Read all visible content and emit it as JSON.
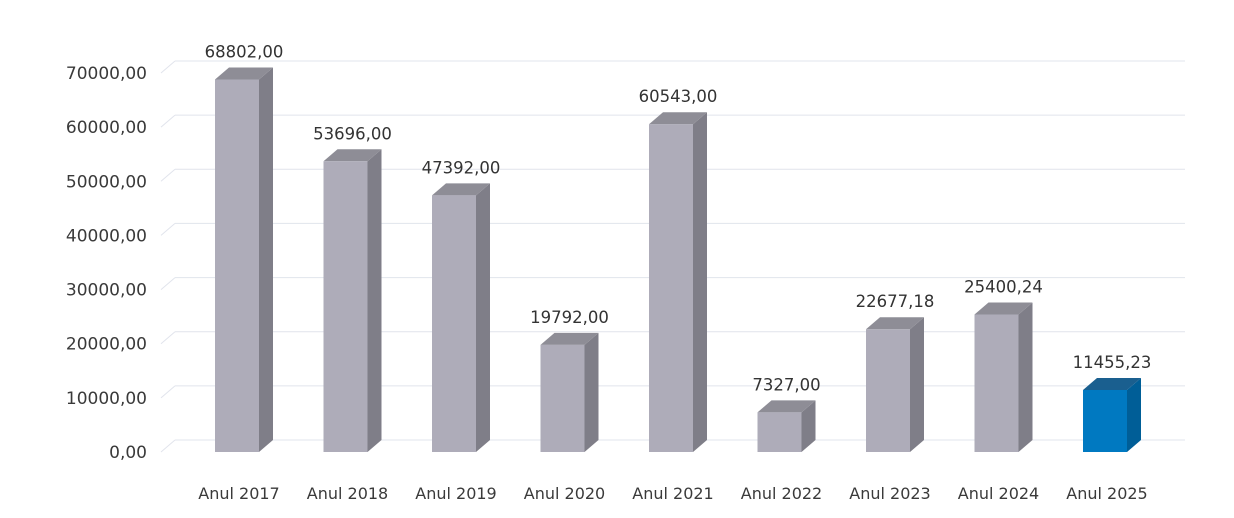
{
  "chart_data": {
    "type": "bar",
    "categories": [
      "Anul 2017",
      "Anul 2018",
      "Anul 2019",
      "Anul 2020",
      "Anul 2021",
      "Anul 2022",
      "Anul 2023",
      "Anul 2024",
      "Anul 2025"
    ],
    "values": [
      68802.0,
      53696.0,
      47392.0,
      19792.0,
      60543.0,
      7327.0,
      22677.18,
      25400.24,
      11455.23
    ],
    "data_labels": [
      "68802,00",
      "53696,00",
      "47392,00",
      "19792,00",
      "60543,00",
      "7327,00",
      "22677,18",
      "25400,24",
      "11455,23"
    ],
    "y_ticks": [
      0,
      10000,
      20000,
      30000,
      40000,
      50000,
      60000,
      70000
    ],
    "y_tick_labels": [
      "0,00",
      "10000,00",
      "20000,00",
      "30000,00",
      "40000,00",
      "50000,00",
      "60000,00",
      "70000,00"
    ],
    "ylim": [
      0,
      70000
    ],
    "grid": true,
    "legend": "none",
    "three_d": true,
    "colors": {
      "default_front": "#aeacb9",
      "default_side": "#7f7e88",
      "default_top": "#8e8d96",
      "highlight_front": "#0079c1",
      "highlight_side": "#005e97",
      "highlight_top": "#1a5f8f"
    },
    "highlight_index": 8
  }
}
